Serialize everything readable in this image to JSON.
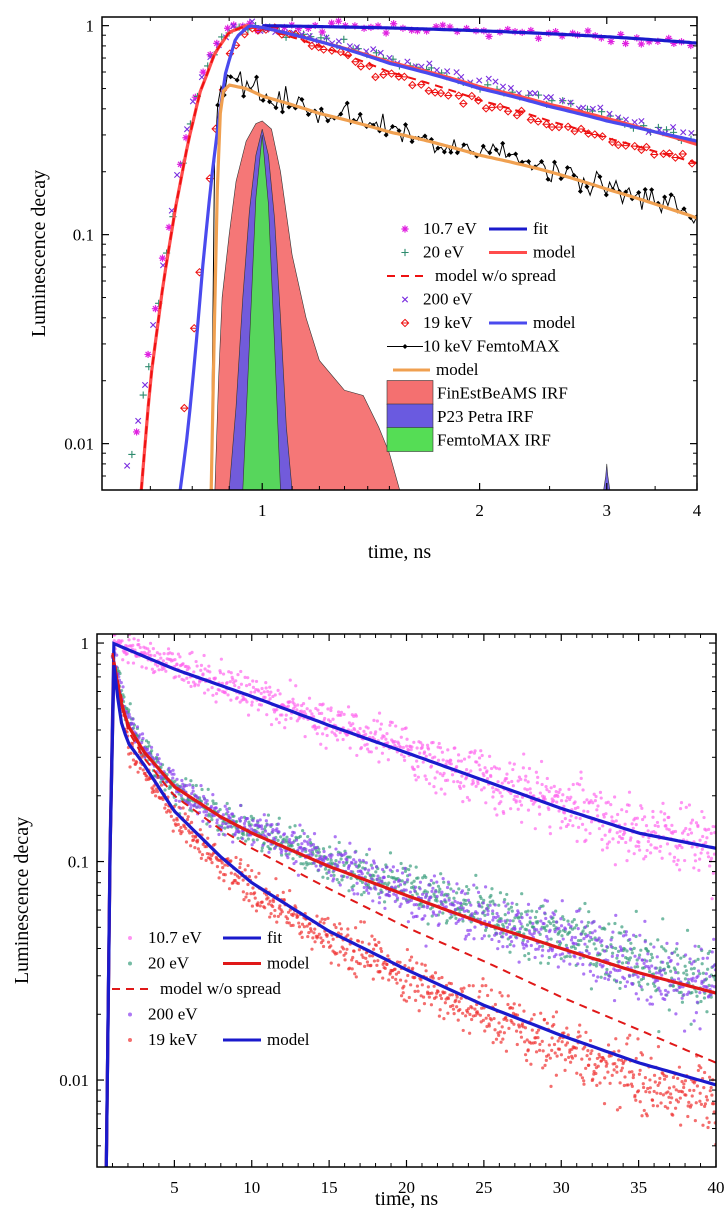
{
  "chart_data": [
    {
      "type": "line",
      "xlabel": "time, ns",
      "ylabel": "Luminescence decay",
      "x_scale": "log",
      "y_scale": "log",
      "xlim": [
        0.6,
        4
      ],
      "ylim": [
        0.006,
        1.1
      ],
      "x_ticks": [
        1,
        2,
        3,
        4
      ],
      "x_tick_labels": [
        "1",
        "2",
        "3",
        "4"
      ],
      "y_ticks": [
        0.01,
        0.1,
        1
      ],
      "y_tick_labels": [
        "0.01",
        "0.1",
        "1"
      ],
      "legend_position": "lower-right",
      "legend": [
        {
          "label": "10.7 eV",
          "marker": "asterisk",
          "color": "#e020e0",
          "line_label": "fit",
          "line_color": "#1a1acc",
          "line_style": "solid"
        },
        {
          "label": "20 eV",
          "marker": "plus",
          "color": "#2e8b6e",
          "line_label": "model",
          "line_color": "#ff4c4c",
          "line_style": "solid"
        },
        {
          "label": "",
          "marker": "",
          "color": "",
          "line_label": "model w/o spread",
          "line_color": "#ee1111",
          "line_style": "dashed"
        },
        {
          "label": "200 eV",
          "marker": "cross",
          "color": "#7b2fe0",
          "line_label": "",
          "line_color": "",
          "line_style": ""
        },
        {
          "label": "19 keV",
          "marker": "diamond",
          "color": "#ee1111",
          "line_label": "model",
          "line_color": "#4a4aee",
          "line_style": "solid"
        },
        {
          "label": "10 keV FemtoMAX",
          "marker": "dot-line",
          "color": "#000000",
          "line_label": "",
          "line_color": "",
          "line_style": ""
        },
        {
          "label": "",
          "marker": "",
          "color": "",
          "line_label": "model",
          "line_color": "#f0a050",
          "line_style": "solid"
        },
        {
          "label": "FinEstBeAMS IRF",
          "marker": "fill",
          "color": "#f47070",
          "line_label": "",
          "line_color": "",
          "line_style": ""
        },
        {
          "label": "P23 Petra IRF",
          "marker": "fill",
          "color": "#6a5ae0",
          "line_label": "",
          "line_color": "",
          "line_style": ""
        },
        {
          "label": "FemtoMAX IRF",
          "marker": "fill",
          "color": "#55dd55",
          "line_label": "",
          "line_color": "",
          "line_style": ""
        }
      ],
      "series": [
        {
          "name": "10.7 eV",
          "kind": "scatter",
          "color": "#e020e0",
          "x": [
            0.67,
            0.7,
            0.73,
            0.76,
            0.79,
            0.82,
            0.86,
            0.9,
            0.95,
            1.0,
            1.2,
            1.5,
            2.0,
            2.5,
            3.0,
            3.5,
            4.0
          ],
          "y": [
            0.012,
            0.03,
            0.08,
            0.17,
            0.33,
            0.55,
            0.8,
            0.98,
            1.0,
            1.0,
            0.99,
            0.97,
            0.94,
            0.91,
            0.88,
            0.85,
            0.83
          ]
        },
        {
          "name": "fit",
          "kind": "line",
          "color": "#1a1acc",
          "x": [
            1.0,
            1.5,
            2.0,
            2.5,
            3.0,
            3.5,
            4.0
          ],
          "y": [
            1.0,
            0.975,
            0.945,
            0.915,
            0.885,
            0.855,
            0.825
          ]
        },
        {
          "name": "20 eV",
          "kind": "scatter",
          "color": "#2e8b6e",
          "x": [
            0.66,
            0.7,
            0.73,
            0.76,
            0.79,
            0.82,
            0.86,
            0.9,
            0.95,
            1.0,
            1.2,
            1.5,
            2.0,
            2.5,
            3.0,
            3.5,
            4.0
          ],
          "y": [
            0.009,
            0.025,
            0.07,
            0.15,
            0.3,
            0.5,
            0.75,
            0.95,
            1.0,
            0.98,
            0.85,
            0.68,
            0.52,
            0.43,
            0.37,
            0.32,
            0.28
          ]
        },
        {
          "name": "model",
          "kind": "line",
          "color": "#ff4c4c",
          "x": [
            0.68,
            0.7,
            0.73,
            0.76,
            0.79,
            0.82,
            0.86,
            0.9,
            0.95,
            1.0,
            1.2,
            1.5,
            2.0,
            2.5,
            3.0,
            3.5,
            4.0
          ],
          "y": [
            0.006,
            0.02,
            0.06,
            0.14,
            0.28,
            0.48,
            0.74,
            0.93,
            1.0,
            0.98,
            0.84,
            0.67,
            0.51,
            0.42,
            0.36,
            0.31,
            0.27
          ]
        },
        {
          "name": "model w/o spread",
          "kind": "line",
          "dashed": true,
          "color": "#ee1111",
          "x": [
            0.68,
            0.7,
            0.73,
            0.76,
            0.79,
            0.82,
            0.86,
            0.9,
            0.95,
            1.0,
            1.2,
            1.5,
            2.0,
            2.5,
            3.0,
            3.5,
            4.0
          ],
          "y": [
            0.006,
            0.02,
            0.06,
            0.14,
            0.28,
            0.48,
            0.74,
            0.93,
            1.0,
            0.97,
            0.8,
            0.6,
            0.44,
            0.35,
            0.29,
            0.25,
            0.22
          ]
        },
        {
          "name": "200 eV",
          "kind": "scatter",
          "color": "#7b2fe0",
          "x": [
            0.65,
            0.68,
            0.71,
            0.74,
            0.77,
            0.8,
            0.84,
            0.88,
            0.93,
            0.98,
            1.2,
            1.5,
            2.0,
            2.5,
            3.0,
            3.5,
            4.0
          ],
          "y": [
            0.008,
            0.015,
            0.04,
            0.1,
            0.22,
            0.42,
            0.66,
            0.88,
            1.0,
            0.99,
            0.86,
            0.7,
            0.54,
            0.45,
            0.38,
            0.33,
            0.29
          ]
        },
        {
          "name": "19 keV",
          "kind": "scatter",
          "color": "#ee1111",
          "x": [
            0.78,
            0.8,
            0.82,
            0.84,
            0.86,
            0.88,
            0.9,
            0.95,
            1.0,
            1.2,
            1.5,
            2.0,
            2.5,
            3.0,
            3.5,
            4.0
          ],
          "y": [
            0.015,
            0.03,
            0.07,
            0.15,
            0.3,
            0.5,
            0.75,
            0.95,
            1.0,
            0.8,
            0.58,
            0.42,
            0.34,
            0.29,
            0.25,
            0.22
          ]
        },
        {
          "name": "model",
          "kind": "line",
          "color": "#4a4aee",
          "x": [
            0.77,
            0.79,
            0.81,
            0.83,
            0.85,
            0.87,
            0.89,
            0.92,
            0.96,
            1.0,
            1.2,
            1.5,
            2.0,
            2.5,
            3.0,
            3.5,
            4.0
          ],
          "y": [
            0.006,
            0.012,
            0.03,
            0.08,
            0.18,
            0.35,
            0.6,
            0.88,
            1.0,
            0.98,
            0.84,
            0.66,
            0.5,
            0.41,
            0.35,
            0.31,
            0.28
          ]
        },
        {
          "name": "10 keV FemtoMAX",
          "kind": "line-markers",
          "color": "#000000",
          "x": [
            0.85,
            0.86,
            0.88,
            0.9,
            0.92,
            0.95,
            1.0,
            1.1,
            1.2,
            1.3,
            1.4,
            1.5,
            1.6,
            1.8,
            2.0,
            2.2,
            2.4,
            2.6,
            2.8,
            3.0,
            3.2,
            3.4,
            3.6,
            3.8,
            4.0
          ],
          "y": [
            0.006,
            0.35,
            0.55,
            0.58,
            0.55,
            0.52,
            0.48,
            0.42,
            0.38,
            0.36,
            0.34,
            0.31,
            0.3,
            0.27,
            0.25,
            0.23,
            0.21,
            0.2,
            0.18,
            0.17,
            0.16,
            0.15,
            0.14,
            0.13,
            0.12
          ]
        },
        {
          "name": "model",
          "kind": "line",
          "color": "#f0a050",
          "x": [
            0.85,
            0.86,
            0.87,
            0.88,
            0.9,
            0.95,
            1.0,
            1.2,
            1.5,
            2.0,
            2.5,
            3.0,
            3.5,
            4.0
          ],
          "y": [
            0.006,
            0.05,
            0.3,
            0.48,
            0.52,
            0.5,
            0.46,
            0.38,
            0.31,
            0.24,
            0.2,
            0.165,
            0.14,
            0.12
          ]
        },
        {
          "name": "FinEstBeAMS IRF",
          "kind": "area",
          "color": "#f47070",
          "x": [
            0.86,
            0.87,
            0.88,
            0.9,
            0.92,
            0.95,
            0.98,
            1.0,
            1.03,
            1.06,
            1.1,
            1.15,
            1.2,
            1.3,
            1.38,
            1.45,
            1.5,
            1.55
          ],
          "y": [
            0.006,
            0.02,
            0.05,
            0.1,
            0.18,
            0.28,
            0.34,
            0.35,
            0.32,
            0.2,
            0.08,
            0.04,
            0.025,
            0.018,
            0.017,
            0.012,
            0.009,
            0.006
          ]
        },
        {
          "name": "P23 Petra IRF",
          "kind": "area",
          "color": "#6a5ae0",
          "x": [
            0.9,
            0.92,
            0.94,
            0.96,
            0.98,
            1.0,
            1.02,
            1.04,
            1.06,
            1.08,
            1.1
          ],
          "y": [
            0.006,
            0.015,
            0.05,
            0.13,
            0.24,
            0.32,
            0.24,
            0.12,
            0.04,
            0.012,
            0.006
          ]
        },
        {
          "name": "P23 Petra IRF",
          "kind": "area",
          "color": "#6a5ae0",
          "x": [
            2.97,
            2.99,
            3.0,
            3.01,
            3.03
          ],
          "y": [
            0.006,
            0.007,
            0.008,
            0.007,
            0.006
          ]
        },
        {
          "name": "FemtoMAX IRF",
          "kind": "area",
          "color": "#55dd55",
          "x": [
            0.94,
            0.96,
            0.98,
            1.0,
            1.02,
            1.04,
            1.06
          ],
          "y": [
            0.006,
            0.03,
            0.15,
            0.3,
            0.14,
            0.03,
            0.006
          ]
        }
      ]
    },
    {
      "type": "scatter",
      "xlabel": "time, ns",
      "ylabel": "Luminescence decay",
      "x_scale": "linear",
      "y_scale": "log",
      "xlim": [
        0,
        40
      ],
      "ylim": [
        0.004,
        1.1
      ],
      "x_ticks": [
        5,
        10,
        15,
        20,
        25,
        30,
        35,
        40
      ],
      "x_tick_labels": [
        "5",
        "10",
        "15",
        "20",
        "25",
        "30",
        "35",
        "40"
      ],
      "y_ticks": [
        0.01,
        0.1,
        1
      ],
      "y_tick_labels": [
        "0.01",
        "0.1",
        "1"
      ],
      "legend_position": "lower-left",
      "legend": [
        {
          "label": "10.7 eV",
          "marker": "dot",
          "color": "#ff66ee",
          "line_label": "fit",
          "line_color": "#1a1acc",
          "line_style": "solid"
        },
        {
          "label": "20 eV",
          "marker": "dot",
          "color": "#3a9e7e",
          "line_label": "model",
          "line_color": "#e01818",
          "line_style": "solid"
        },
        {
          "label": "",
          "marker": "",
          "color": "",
          "line_label": "model w/o spread",
          "line_color": "#e01818",
          "line_style": "dashed"
        },
        {
          "label": "200 eV",
          "marker": "dot",
          "color": "#8a3ef0",
          "line_label": "",
          "line_color": "",
          "line_style": ""
        },
        {
          "label": "19 keV",
          "marker": "dot",
          "color": "#f03030",
          "line_label": "model",
          "line_color": "#1a1acc",
          "line_style": "solid"
        }
      ],
      "series": [
        {
          "name": "10.7 eV",
          "kind": "scatter",
          "color": "#ff66ee",
          "x": [
            1,
            5,
            10,
            15,
            20,
            25,
            30,
            35,
            40
          ],
          "y": [
            1.0,
            0.78,
            0.58,
            0.43,
            0.32,
            0.24,
            0.18,
            0.14,
            0.12
          ]
        },
        {
          "name": "fit",
          "kind": "line",
          "color": "#1a1acc",
          "x": [
            0.6,
            1,
            5,
            10,
            15,
            20,
            25,
            30,
            35,
            40
          ],
          "y": [
            0.004,
            1.0,
            0.76,
            0.57,
            0.42,
            0.315,
            0.235,
            0.175,
            0.135,
            0.115
          ]
        },
        {
          "name": "20 eV",
          "kind": "scatter",
          "color": "#3a9e7e",
          "x": [
            1,
            2,
            3,
            5,
            8,
            10,
            15,
            20,
            25,
            30,
            35,
            40
          ],
          "y": [
            0.9,
            0.45,
            0.33,
            0.22,
            0.16,
            0.14,
            0.1,
            0.075,
            0.058,
            0.045,
            0.035,
            0.028
          ]
        },
        {
          "name": "model",
          "kind": "line",
          "color": "#e01818",
          "x": [
            0.6,
            1,
            1.5,
            2,
            3,
            5,
            8,
            10,
            15,
            20,
            25,
            30,
            35,
            40
          ],
          "y": [
            0.004,
            0.9,
            0.55,
            0.42,
            0.32,
            0.22,
            0.16,
            0.135,
            0.095,
            0.07,
            0.052,
            0.04,
            0.031,
            0.025
          ]
        },
        {
          "name": "model w/o spread",
          "kind": "line",
          "dashed": true,
          "color": "#e01818",
          "x": [
            1,
            2,
            3,
            5,
            8,
            10,
            15,
            20,
            25,
            30,
            35,
            40
          ],
          "y": [
            0.9,
            0.4,
            0.3,
            0.2,
            0.14,
            0.115,
            0.075,
            0.05,
            0.035,
            0.024,
            0.017,
            0.012
          ]
        },
        {
          "name": "200 eV",
          "kind": "scatter",
          "color": "#8a3ef0",
          "x": [
            1,
            2,
            3,
            5,
            8,
            10,
            15,
            20,
            25,
            30,
            35,
            40
          ],
          "y": [
            0.9,
            0.44,
            0.33,
            0.22,
            0.16,
            0.14,
            0.1,
            0.072,
            0.055,
            0.043,
            0.033,
            0.026
          ]
        },
        {
          "name": "19 keV",
          "kind": "scatter",
          "color": "#f03030",
          "x": [
            1,
            2,
            3,
            5,
            8,
            10,
            15,
            20,
            25,
            30,
            35,
            40
          ],
          "y": [
            0.9,
            0.35,
            0.27,
            0.16,
            0.1,
            0.075,
            0.045,
            0.03,
            0.02,
            0.014,
            0.01,
            0.008
          ]
        },
        {
          "name": "model",
          "kind": "line",
          "color": "#1a1acc",
          "x": [
            0.6,
            1,
            1.5,
            2,
            3,
            5,
            8,
            10,
            15,
            20,
            25,
            30,
            35,
            40
          ],
          "y": [
            0.004,
            0.9,
            0.45,
            0.35,
            0.28,
            0.17,
            0.105,
            0.08,
            0.048,
            0.032,
            0.022,
            0.016,
            0.012,
            0.0095
          ]
        }
      ]
    }
  ]
}
